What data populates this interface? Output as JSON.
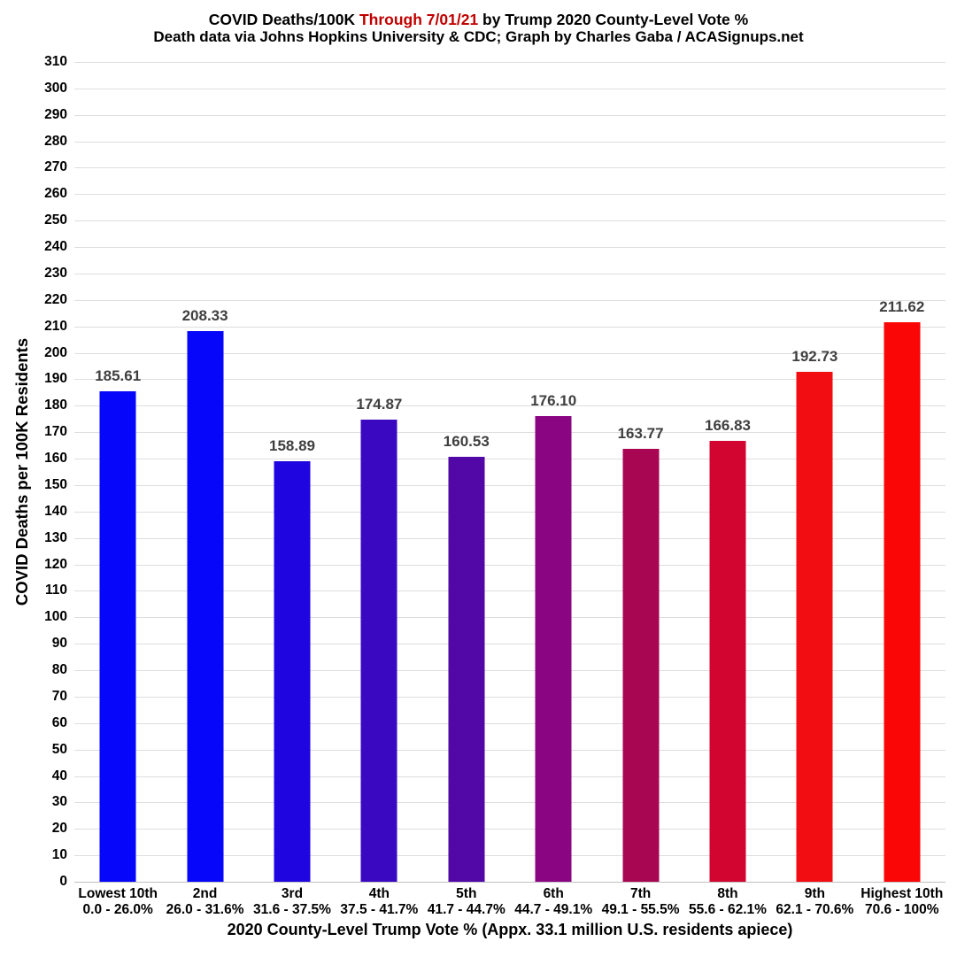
{
  "header": {
    "title_prefix": "COVID Deaths/100K ",
    "title_highlight": "Through 7/01/21",
    "title_suffix": " by Trump 2020 County-Level Vote %",
    "title_highlight_color": "#c00000",
    "subtitle": "Death data via Johns Hopkins University & CDC; Graph by Charles Gaba / ACASignups.net"
  },
  "chart_data": {
    "type": "bar",
    "title": "COVID Deaths/100K Through 7/01/21 by Trump 2020 County-Level Vote %",
    "subtitle": "Death data via Johns Hopkins University & CDC; Graph by Charles Gaba / ACASignups.net",
    "xlabel": "2020 County-Level Trump Vote % (Appx. 33.1 million U.S. residents apiece)",
    "ylabel": "COVID Deaths per 100K Residents",
    "ylim": [
      0,
      310
    ],
    "ytick_step": 10,
    "grid": true,
    "categories": [
      "Lowest 10th",
      "2nd",
      "3rd",
      "4th",
      "5th",
      "6th",
      "7th",
      "8th",
      "9th",
      "Highest 10th"
    ],
    "category_ranges": [
      "0.0 - 26.0%",
      "26.0 - 31.6%",
      "31.6 - 37.5%",
      "37.5 - 41.7%",
      "41.7 - 44.7%",
      "44.7 - 49.1%",
      "49.1 - 55.5%",
      "55.6 - 62.1%",
      "62.1 - 70.6%",
      "70.6 - 100%"
    ],
    "values": [
      185.61,
      208.33,
      158.89,
      174.87,
      160.53,
      176.1,
      163.77,
      166.83,
      192.73,
      211.62
    ],
    "value_labels": [
      "185.61",
      "208.33",
      "158.89",
      "174.87",
      "160.53",
      "176.10",
      "163.77",
      "166.83",
      "192.73",
      "211.62"
    ],
    "bar_colors": [
      "#0606fa",
      "#0606fa",
      "#1f06e0",
      "#3b08c2",
      "#5208a6",
      "#8a0581",
      "#a80552",
      "#d10530",
      "#f20d12",
      "#fb0606"
    ],
    "value_label_color": "#3f3f3f",
    "gridline_color": "#dedede",
    "axis_line_color": "#c0c0c0",
    "legend": "none"
  }
}
